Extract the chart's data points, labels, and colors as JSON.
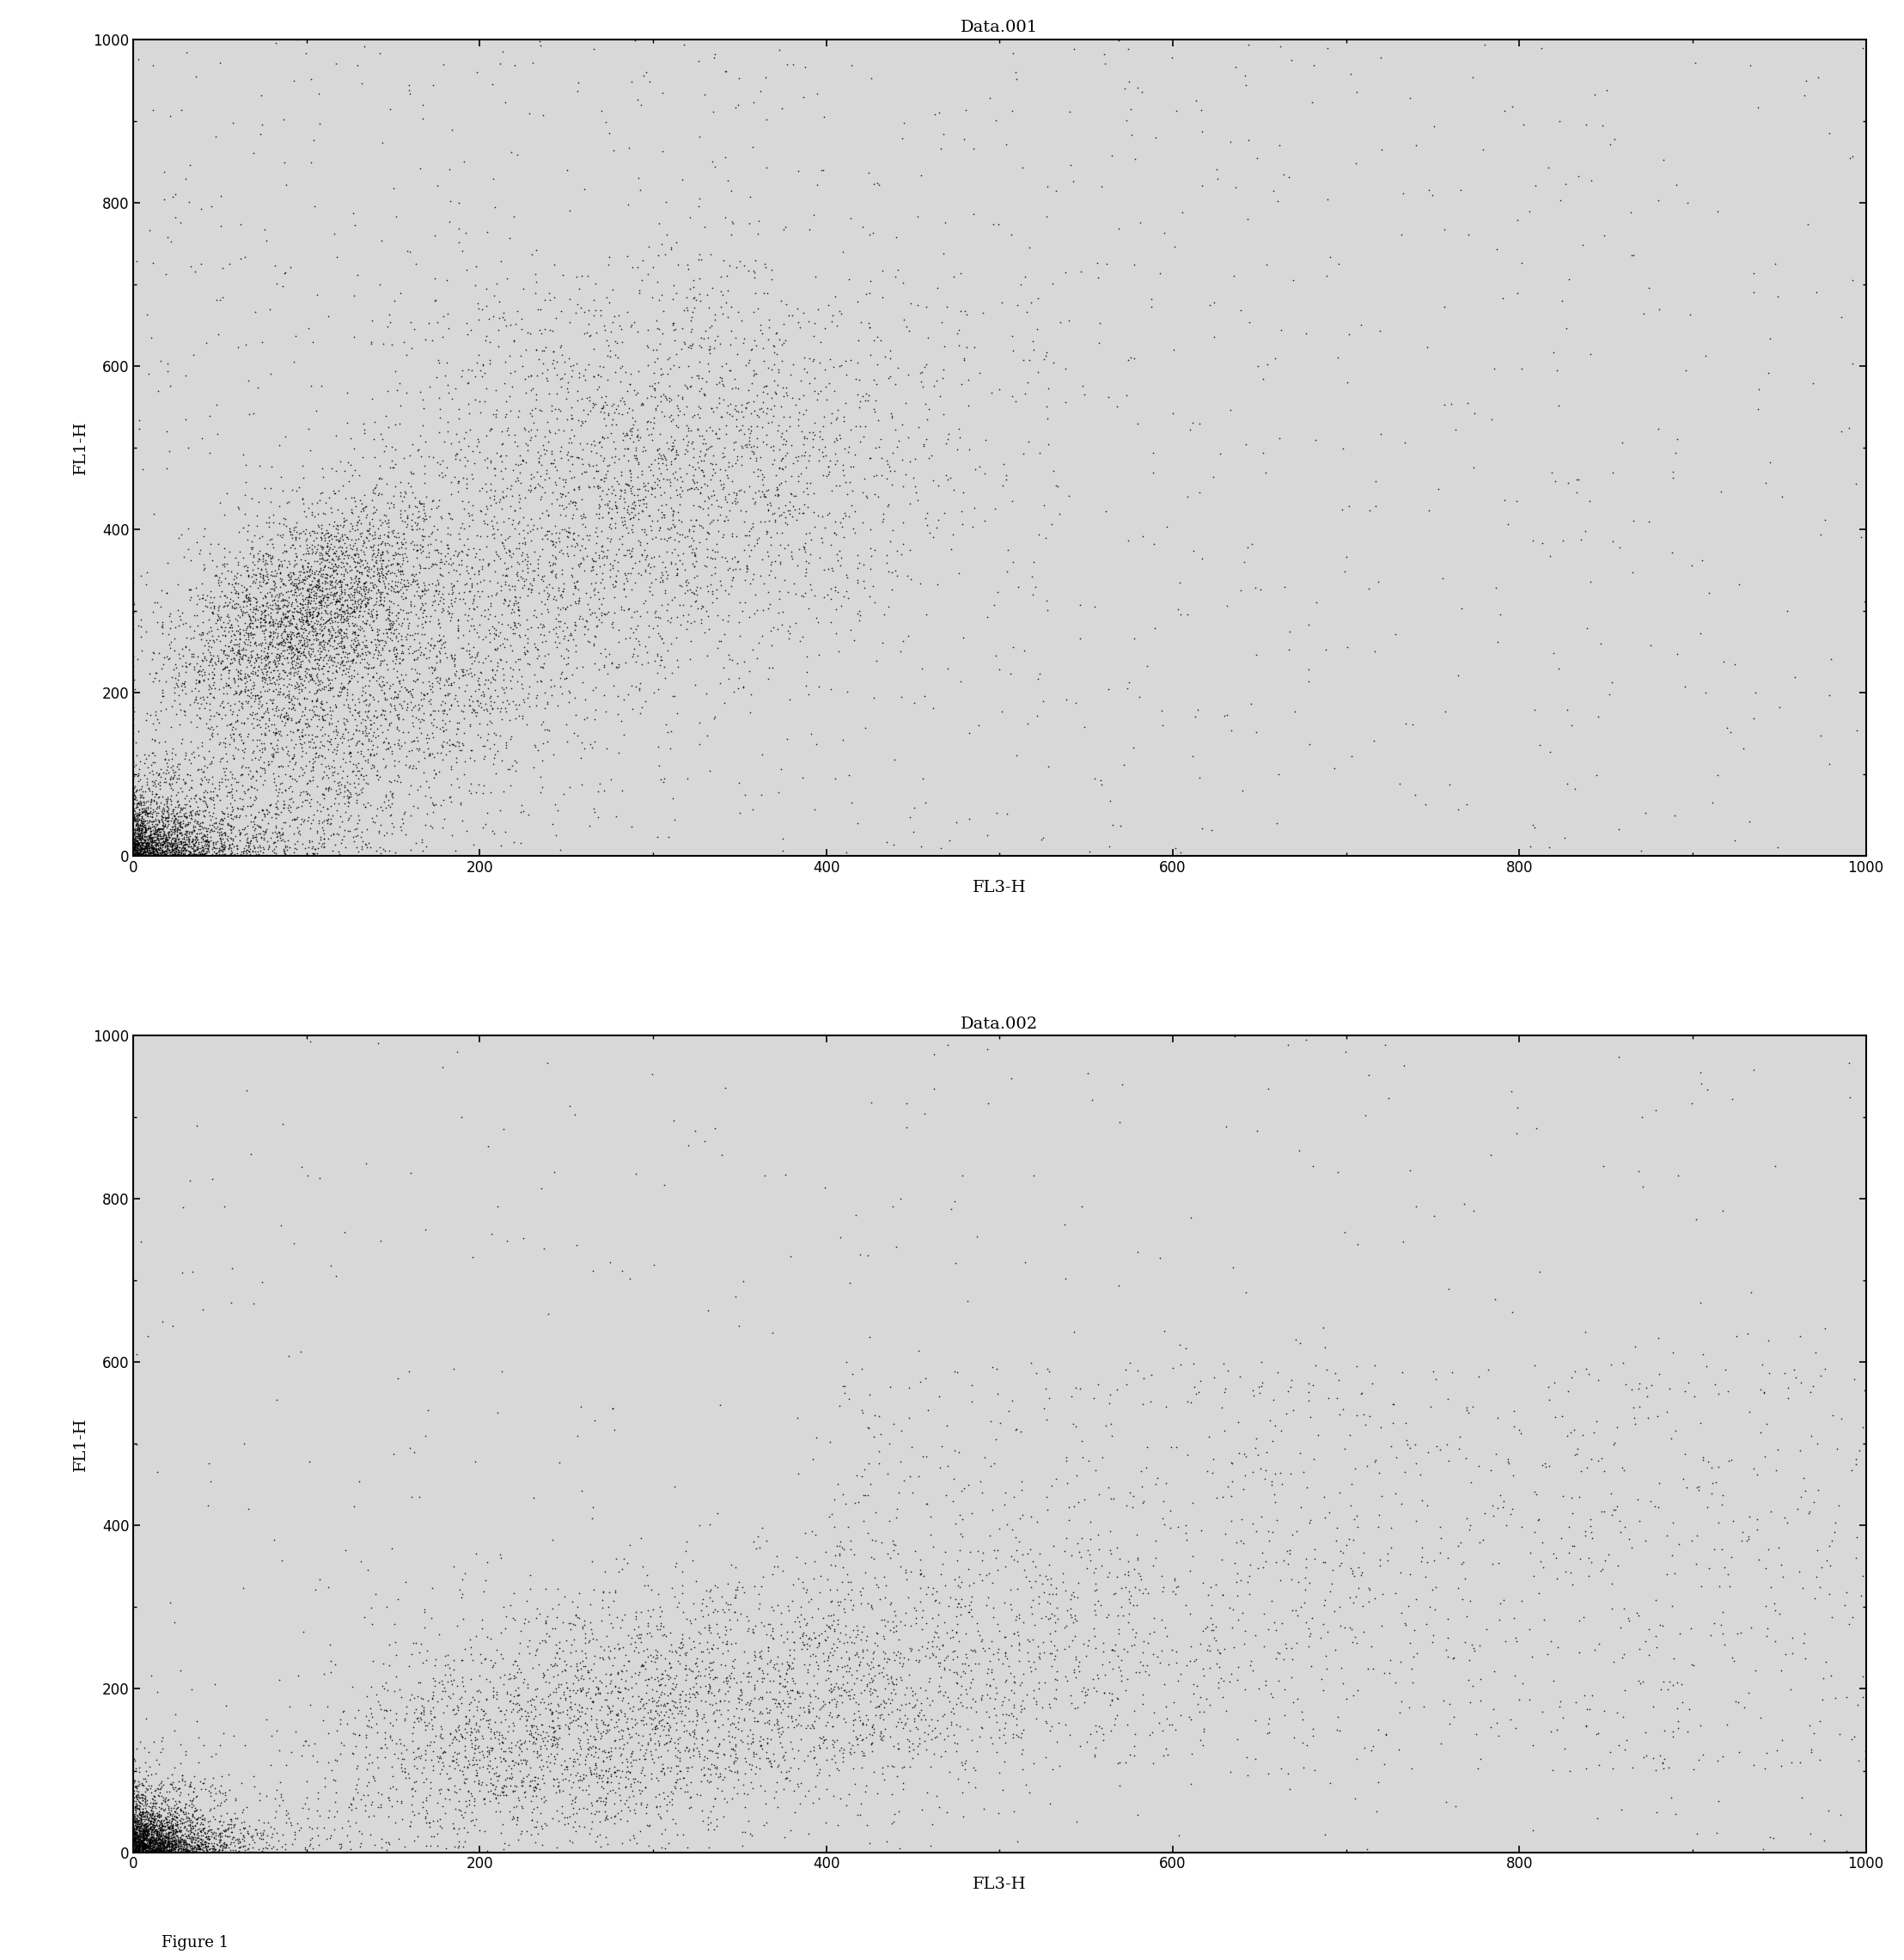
{
  "title1": "Data.001",
  "title2": "Data.002",
  "xlabel": "FL3-H",
  "ylabel": "FL1-H",
  "figure_label": "Figure 1",
  "xlim": [
    0,
    1000
  ],
  "ylim": [
    0,
    1000
  ],
  "xticks": [
    0,
    200,
    400,
    600,
    800,
    1000
  ],
  "yticks": [
    0,
    200,
    400,
    600,
    800,
    1000
  ],
  "background_color": "#ffffff",
  "plot_bg_color": "#d8d8d8",
  "dot_color": "#000000",
  "dot_size": 1.5,
  "dot_alpha": 0.8,
  "seed1": 42,
  "seed2": 99
}
